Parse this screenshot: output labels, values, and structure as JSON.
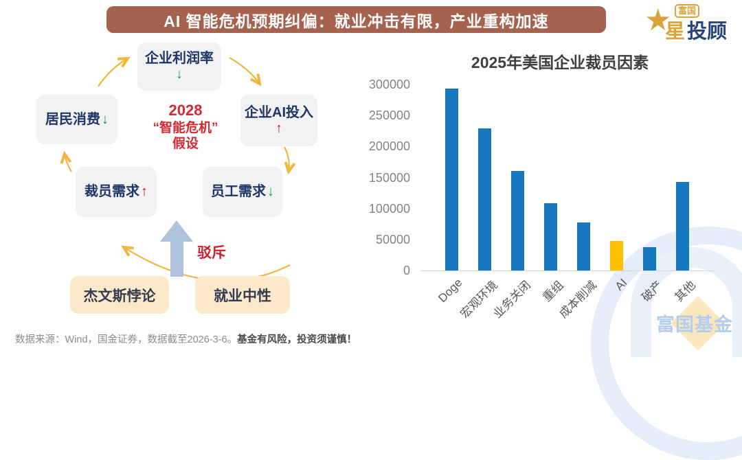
{
  "header": {
    "title": "AI 智能危机预期纠偏：就业冲击有限，产业重构加速",
    "banner_color": "#A5624E"
  },
  "brand": {
    "badge": "富国",
    "star": "星",
    "suffix": "投顾"
  },
  "diagram": {
    "center": {
      "line1": "2028",
      "line2": "“智能危机”",
      "line3": "假设"
    },
    "nodes": {
      "profit": {
        "label": "企业利润率",
        "arrow": "↓",
        "direction": "down"
      },
      "consumption": {
        "label": "居民消费",
        "arrow": "↓",
        "direction": "down"
      },
      "ai_investment": {
        "label": "企业AI投入",
        "arrow": "↑",
        "direction": "up"
      },
      "layoff_demand": {
        "label": "裁员需求",
        "arrow": "↑",
        "direction": "up"
      },
      "labor_demand": {
        "label": "员工需求",
        "arrow": "↓",
        "direction": "down"
      }
    },
    "refute_label": "驳斥",
    "bottom_nodes": {
      "jevons": "杰文斯悖论",
      "neutral": "就业中性"
    }
  },
  "chart_data": {
    "type": "bar",
    "title": "2025年美国企业裁员因素",
    "categories": [
      "Doge",
      "宏观环境",
      "业务关闭",
      "重组",
      "成本削减",
      "AI",
      "破产",
      "其他"
    ],
    "values": [
      293000,
      229000,
      161000,
      108000,
      78000,
      48000,
      38000,
      143000
    ],
    "yticks": [
      300000,
      250000,
      200000,
      150000,
      100000,
      50000,
      0
    ],
    "ylim": [
      0,
      300000
    ],
    "xlabel": "",
    "ylabel": "",
    "grid": false,
    "legend": false,
    "bar_color": "#1878BE",
    "highlight_index": 5,
    "highlight_color": "#FFC000"
  },
  "watermark": {
    "text": "富国基金"
  },
  "footer": {
    "source": "数据来源：Wind，国金证券，数据截至2026-3-6。",
    "disclaimer": "基金有风险，投资须谨慎！"
  }
}
